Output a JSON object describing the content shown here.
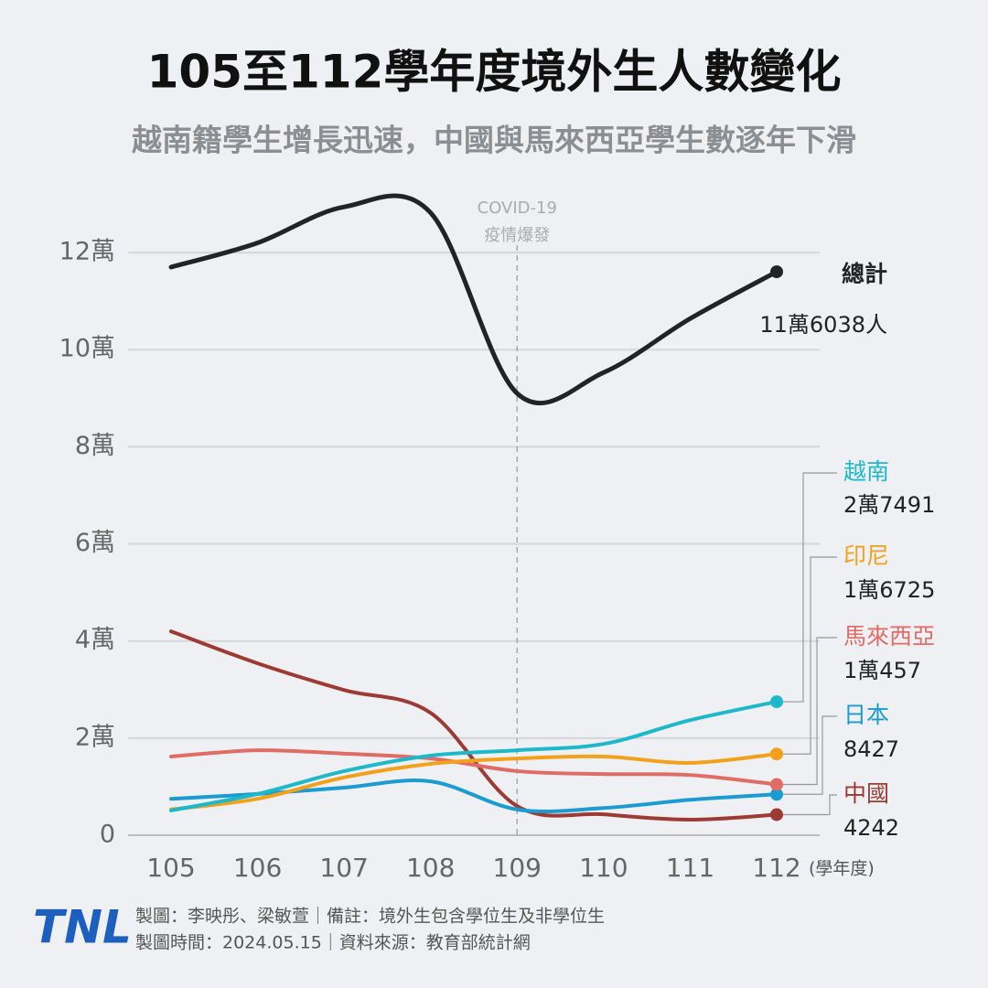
{
  "chart_data": {
    "type": "line",
    "title": "105至112學年度境外生人數變化",
    "subtitle": "越南籍學生增長迅速，中國與馬來西亞學生數逐年下滑",
    "x_label": "(學年度)",
    "categories": [
      "105",
      "106",
      "107",
      "108",
      "109",
      "110",
      "111",
      "112"
    ],
    "ylim": [
      0,
      130000
    ],
    "yticks": [
      0,
      {
        "value": 20000,
        "label": "2萬"
      },
      {
        "value": 40000,
        "label": "4萬"
      },
      {
        "value": 60000,
        "label": "6萬"
      },
      {
        "value": 80000,
        "label": "8萬"
      },
      {
        "value": 100000,
        "label": "10萬"
      },
      {
        "value": 120000,
        "label": "12萬"
      }
    ],
    "grid": true,
    "annotation": {
      "at": "109",
      "text": [
        "COVID-19",
        "疫情爆發"
      ]
    },
    "series": [
      {
        "name": "總計",
        "color": "#222324",
        "values": [
          117000,
          122000,
          129400,
          128200,
          91000,
          95300,
          106400,
          116038
        ],
        "value_labels": [
          null,
          null,
          null,
          null,
          null,
          null,
          null,
          "11萬6038人"
        ]
      },
      {
        "name": "越南",
        "color": "#1db8c9",
        "values": [
          5100,
          8500,
          13200,
          16400,
          17500,
          18800,
          23700,
          27491
        ],
        "value_labels": [
          null,
          null,
          null,
          null,
          null,
          null,
          null,
          "2萬7491"
        ]
      },
      {
        "name": "印尼",
        "color": "#f3a11a",
        "values": [
          5300,
          7500,
          11900,
          14700,
          15800,
          16200,
          14900,
          16725
        ],
        "value_labels": [
          null,
          null,
          null,
          null,
          null,
          null,
          null,
          "1萬6725"
        ]
      },
      {
        "name": "馬來西亞",
        "color": "#e06c66",
        "values": [
          16200,
          17500,
          16800,
          15800,
          13200,
          12600,
          12400,
          10457
        ],
        "value_labels": [
          null,
          null,
          null,
          null,
          null,
          null,
          null,
          "1萬457"
        ]
      },
      {
        "name": "日本",
        "color": "#1a9bd1",
        "values": [
          7500,
          8500,
          9800,
          11100,
          5300,
          5600,
          7300,
          8427
        ]
      },
      {
        "name": "中國",
        "color": "#9c3a33",
        "values": [
          42000,
          35400,
          29900,
          25200,
          6000,
          4300,
          3200,
          4242
        ]
      }
    ],
    "footer": {
      "logo": "TNL",
      "lines": [
        "製圖：李映彤、梁敏萱｜備註：境外生包含學位生及非學位生",
        "製圖時間：2024.05.15｜資料來源：教育部統計網"
      ]
    }
  }
}
